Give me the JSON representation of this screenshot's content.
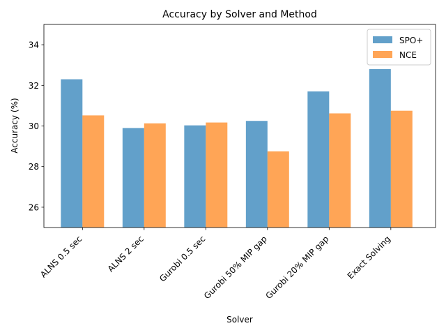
{
  "chart_data": {
    "type": "bar",
    "title": "Accuracy by Solver and Method",
    "xlabel": "Solver",
    "ylabel": "Accuracy (%)",
    "categories": [
      "ALNS 0.5 sec",
      "ALNS 2 sec",
      "Gurobi 0.5 sec",
      "Gurobi 50% MIP gap",
      "Gurobi 20% MIP gap",
      "Exact Solving"
    ],
    "series": [
      {
        "name": "SPO+",
        "color": "#1f77b4",
        "values": [
          32.3,
          29.9,
          30.03,
          30.25,
          31.7,
          32.8
        ]
      },
      {
        "name": "NCE",
        "color": "#ff7f0e",
        "values": [
          30.52,
          30.13,
          30.17,
          28.75,
          30.62,
          30.75
        ]
      }
    ],
    "ylim": [
      25,
      35
    ],
    "yticks": [
      26,
      28,
      30,
      32,
      34
    ],
    "grid": false,
    "legend_position": "top-right",
    "bar_opacity": 0.7
  }
}
